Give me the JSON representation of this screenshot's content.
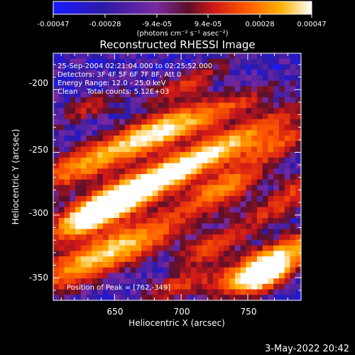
{
  "chart_data": {
    "type": "heatmap",
    "title": "Reconstructed RHESSI Image",
    "xlabel": "Heliocentric X (arcsec)",
    "ylabel": "Heliocentric Y (arcsec)",
    "xlim": [
      604,
      790
    ],
    "ylim": [
      -368,
      -171
    ],
    "xticks": [
      650,
      700,
      750
    ],
    "yticks": [
      -200,
      -250,
      -300,
      -350
    ],
    "grid": false,
    "colormap": "blue-purple-red-yellow-white",
    "colorbar": {
      "range": [
        -0.00047,
        0.00047
      ],
      "tick_labels": [
        "-0.00047",
        "-0.00028",
        "-9.4e-05",
        "9.4e-05",
        "0.00028",
        "0.00047"
      ],
      "unit_label": "(photons cm⁻² s⁻¹ asec⁻²)",
      "stops": [
        {
          "t": 0.0,
          "color": "#1a1aff"
        },
        {
          "t": 0.2,
          "color": "#2d1aa6"
        },
        {
          "t": 0.4,
          "color": "#7a2aa0"
        },
        {
          "t": 0.52,
          "color": "#5a0f2a"
        },
        {
          "t": 0.62,
          "color": "#d01818"
        },
        {
          "t": 0.75,
          "color": "#ff5a00"
        },
        {
          "t": 0.88,
          "color": "#ffb000"
        },
        {
          "t": 1.0,
          "color": "#ffffff"
        }
      ]
    },
    "annotations": [
      "25-Sep-2004 02:21:04.000 to 02:25:52.000",
      "Detectors: 3F 4F 5F 6F 7F 8F, Att 0",
      "Energy Range: 12.0 - 25.0 keV",
      "Clean    Total counts: 5.12E+03"
    ],
    "peak_label": "Position of Peak = [762,-349]",
    "peak": {
      "x": 762,
      "y": -349
    },
    "features": [
      {
        "x": 705,
        "y": -260,
        "sx": 55,
        "sy": 8,
        "angle": 28,
        "amp": 1.0
      },
      {
        "x": 680,
        "y": -235,
        "sx": 30,
        "sy": 9,
        "angle": 25,
        "amp": 0.95
      },
      {
        "x": 732,
        "y": -278,
        "sx": 22,
        "sy": 8,
        "angle": 25,
        "amp": 0.6
      },
      {
        "x": 648,
        "y": -290,
        "sx": 30,
        "sy": 9,
        "angle": 28,
        "amp": 0.8
      },
      {
        "x": 635,
        "y": -300,
        "sx": 18,
        "sy": 7,
        "angle": 30,
        "amp": 0.55
      },
      {
        "x": 645,
        "y": -330,
        "sx": 45,
        "sy": 10,
        "angle": 25,
        "amp": 0.85
      },
      {
        "x": 622,
        "y": -262,
        "sx": 25,
        "sy": 9,
        "angle": 25,
        "amp": 0.55
      },
      {
        "x": 770,
        "y": -245,
        "sx": 22,
        "sy": 7,
        "angle": 28,
        "amp": 0.45
      },
      {
        "x": 768,
        "y": -335,
        "sx": 32,
        "sy": 8,
        "angle": 28,
        "amp": 0.8
      },
      {
        "x": 762,
        "y": -349,
        "sx": 16,
        "sy": 7,
        "angle": 25,
        "amp": 1.0
      },
      {
        "x": 725,
        "y": -325,
        "sx": 20,
        "sy": 6,
        "angle": 25,
        "amp": 0.5
      },
      {
        "x": 735,
        "y": -215,
        "sx": 25,
        "sy": 6,
        "angle": 25,
        "amp": 0.38
      },
      {
        "x": 705,
        "y": -195,
        "sx": 22,
        "sy": 6,
        "angle": 25,
        "amp": 0.38
      },
      {
        "x": 770,
        "y": -295,
        "sx": 20,
        "sy": 6,
        "angle": 25,
        "amp": 0.38
      },
      {
        "x": 700,
        "y": -355,
        "sx": 20,
        "sy": 6,
        "angle": 25,
        "amp": 0.4
      },
      {
        "x": 630,
        "y": -215,
        "sx": 20,
        "sy": 6,
        "angle": 25,
        "amp": 0.3
      },
      {
        "x": 790,
        "y": -275,
        "sx": 14,
        "sy": 6,
        "angle": 25,
        "amp": 0.35
      }
    ]
  },
  "footer": {
    "timestamp": "3-May-2022 20:42"
  }
}
